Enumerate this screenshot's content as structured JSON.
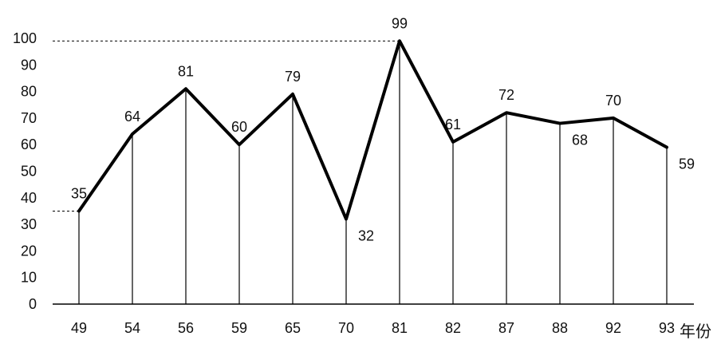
{
  "chart_data": {
    "type": "line",
    "categories": [
      "49",
      "54",
      "56",
      "59",
      "65",
      "70",
      "81",
      "82",
      "87",
      "88",
      "92",
      "93"
    ],
    "values": [
      35,
      64,
      81,
      60,
      79,
      32,
      99,
      61,
      72,
      68,
      70,
      59
    ],
    "ylim": [
      0,
      100
    ],
    "y_ticks": [
      "0",
      "10",
      "20",
      "30",
      "40",
      "50",
      "60",
      "70",
      "80",
      "90",
      "100"
    ],
    "xlabel": "年份",
    "ylabel": "",
    "title": "",
    "grid": false,
    "legend": "none",
    "data_labels": [
      "35",
      "64",
      "81",
      "60",
      "79",
      "32",
      "99",
      "61",
      "72",
      "68",
      "70",
      "59"
    ],
    "line_color": "#000000"
  }
}
